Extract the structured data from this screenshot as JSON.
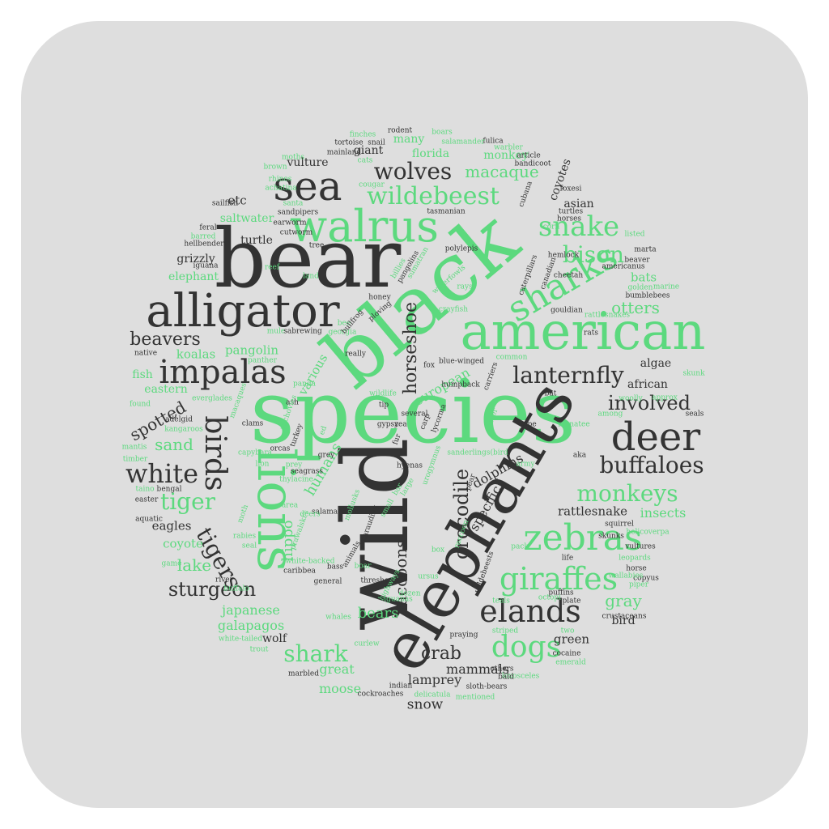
{
  "colors": {
    "background": "#dedede",
    "dark": "#333333",
    "green": "#5cd97e"
  },
  "words": [
    {
      "t": "species",
      "c": "green"
    },
    {
      "t": "wild",
      "c": "dark"
    },
    {
      "t": "black",
      "c": "green"
    },
    {
      "t": "bear",
      "c": "dark"
    },
    {
      "t": "elephants",
      "c": "dark"
    },
    {
      "t": "american",
      "c": "green"
    },
    {
      "t": "lions",
      "c": "green"
    },
    {
      "t": "alligator",
      "c": "dark"
    },
    {
      "t": "walrus",
      "c": "green"
    },
    {
      "t": "sea",
      "c": "dark"
    },
    {
      "t": "deer",
      "c": "dark"
    },
    {
      "t": "zebras",
      "c": "green"
    },
    {
      "t": "sharks",
      "c": "green"
    },
    {
      "t": "impalas",
      "c": "dark"
    },
    {
      "t": "elands",
      "c": "dark"
    },
    {
      "t": "giraffes",
      "c": "green"
    },
    {
      "t": "dogs",
      "c": "green"
    },
    {
      "t": "birds",
      "c": "dark"
    },
    {
      "t": "buffaloes",
      "c": "dark"
    },
    {
      "t": "snake",
      "c": "green"
    },
    {
      "t": "wildebeest",
      "c": "green"
    },
    {
      "t": "white",
      "c": "dark"
    },
    {
      "t": "lanternfly",
      "c": "dark"
    },
    {
      "t": "monkeys",
      "c": "green"
    },
    {
      "t": "wolves",
      "c": "dark"
    },
    {
      "t": "bison",
      "c": "green"
    },
    {
      "t": "tiger",
      "c": "green"
    },
    {
      "t": "tigers",
      "c": "dark"
    },
    {
      "t": "shark",
      "c": "green"
    },
    {
      "t": "involved",
      "c": "dark"
    },
    {
      "t": "sturgeon",
      "c": "dark"
    },
    {
      "t": "crocodile",
      "c": "dark"
    },
    {
      "t": "macaque",
      "c": "green"
    },
    {
      "t": "beavers",
      "c": "dark"
    },
    {
      "t": "otters",
      "c": "green"
    },
    {
      "t": "horseshoe",
      "c": "dark"
    },
    {
      "t": "gray",
      "c": "green"
    },
    {
      "t": "spotted",
      "c": "dark"
    },
    {
      "t": "sand",
      "c": "green"
    },
    {
      "t": "lake",
      "c": "green"
    },
    {
      "t": "raccoons",
      "c": "dark"
    },
    {
      "t": "bears",
      "c": "green"
    },
    {
      "t": "crab",
      "c": "dark"
    },
    {
      "t": "humans",
      "c": "green"
    },
    {
      "t": "hippo",
      "c": "green"
    },
    {
      "t": "specific",
      "c": "dark"
    },
    {
      "t": "dolphins",
      "c": "dark"
    },
    {
      "t": "rattlesnake",
      "c": "dark"
    },
    {
      "t": "insects",
      "c": "green"
    },
    {
      "t": "japanese",
      "c": "green"
    },
    {
      "t": "galapagos",
      "c": "green"
    },
    {
      "t": "mammals",
      "c": "dark"
    },
    {
      "t": "lamprey",
      "c": "dark"
    },
    {
      "t": "moose",
      "c": "green"
    },
    {
      "t": "great",
      "c": "green"
    },
    {
      "t": "snow",
      "c": "dark"
    },
    {
      "t": "green",
      "c": "dark"
    },
    {
      "t": "bird",
      "c": "dark"
    },
    {
      "t": "coyote",
      "c": "green"
    },
    {
      "t": "eagles",
      "c": "dark"
    },
    {
      "t": "wolf",
      "c": "dark"
    },
    {
      "t": "koalas",
      "c": "green"
    },
    {
      "t": "pangolin",
      "c": "green"
    },
    {
      "t": "various",
      "c": "green"
    },
    {
      "t": "european",
      "c": "green"
    },
    {
      "t": "african",
      "c": "dark"
    },
    {
      "t": "algae",
      "c": "dark"
    },
    {
      "t": "bats",
      "c": "green"
    },
    {
      "t": "asian",
      "c": "dark"
    },
    {
      "t": "coyotes",
      "c": "dark"
    },
    {
      "t": "monkey",
      "c": "green"
    },
    {
      "t": "florida",
      "c": "green"
    },
    {
      "t": "many",
      "c": "green"
    },
    {
      "t": "giant",
      "c": "dark"
    },
    {
      "t": "vulture",
      "c": "dark"
    },
    {
      "t": "etc",
      "c": "dark"
    },
    {
      "t": "saltwater",
      "c": "green"
    },
    {
      "t": "turtle",
      "c": "dark"
    },
    {
      "t": "grizzly",
      "c": "dark"
    },
    {
      "t": "elephant",
      "c": "green"
    },
    {
      "t": "fish",
      "c": "green"
    },
    {
      "t": "eastern",
      "c": "green"
    },
    {
      "t": "tortoise",
      "c": "dark"
    },
    {
      "t": "snail",
      "c": "dark"
    },
    {
      "t": "mainland",
      "c": "dark"
    },
    {
      "t": "rodent",
      "c": "dark"
    },
    {
      "t": "boars",
      "c": "green"
    },
    {
      "t": "finches",
      "c": "green"
    },
    {
      "t": "fulica",
      "c": "dark"
    },
    {
      "t": "salamander",
      "c": "green"
    },
    {
      "t": "cats",
      "c": "green"
    },
    {
      "t": "warbler",
      "c": "green"
    },
    {
      "t": "article",
      "c": "dark"
    },
    {
      "t": "moths",
      "c": "green"
    },
    {
      "t": "brown",
      "c": "green"
    },
    {
      "t": "cougar",
      "c": "green"
    },
    {
      "t": "rhinos",
      "c": "green"
    },
    {
      "t": "achatina",
      "c": "green"
    },
    {
      "t": "bandicoot",
      "c": "dark"
    },
    {
      "t": "foxesi",
      "c": "dark"
    },
    {
      "t": "sailfish",
      "c": "dark"
    },
    {
      "t": "santa",
      "c": "green"
    },
    {
      "t": "sandpipers",
      "c": "dark"
    },
    {
      "t": "earworm",
      "c": "dark"
    },
    {
      "t": "tasmanian",
      "c": "dark"
    },
    {
      "t": "turtles",
      "c": "dark"
    },
    {
      "t": "horses",
      "c": "dark"
    },
    {
      "t": "corn",
      "c": "green"
    },
    {
      "t": "feral",
      "c": "dark"
    },
    {
      "t": "cutworm",
      "c": "dark"
    },
    {
      "t": "barred",
      "c": "green"
    },
    {
      "t": "listed",
      "c": "green"
    },
    {
      "t": "hellbender",
      "c": "dark"
    },
    {
      "t": "tree",
      "c": "dark"
    },
    {
      "t": "polylepis",
      "c": "dark"
    },
    {
      "t": "americanus",
      "c": "dark"
    },
    {
      "t": "marta",
      "c": "dark"
    },
    {
      "t": "iguana",
      "c": "dark"
    },
    {
      "t": "reef",
      "c": "green"
    },
    {
      "t": "pangolins",
      "c": "dark"
    },
    {
      "t": "billies",
      "c": "green"
    },
    {
      "t": "sumatran",
      "c": "green"
    },
    {
      "t": "beaver",
      "c": "dark"
    },
    {
      "t": "waterfowls",
      "c": "green"
    },
    {
      "t": "cheetah",
      "c": "dark"
    },
    {
      "t": "hemlock",
      "c": "dark"
    },
    {
      "t": "land",
      "c": "green"
    },
    {
      "t": "rays",
      "c": "green"
    },
    {
      "t": "golden",
      "c": "green"
    },
    {
      "t": "marine",
      "c": "green"
    },
    {
      "t": "bumblebees",
      "c": "dark"
    },
    {
      "t": "honey",
      "c": "dark"
    },
    {
      "t": "crayfish",
      "c": "green"
    },
    {
      "t": "gouldian",
      "c": "dark"
    },
    {
      "t": "rattlesnakes",
      "c": "green"
    },
    {
      "t": "ploving",
      "c": "dark"
    },
    {
      "t": "mule",
      "c": "green"
    },
    {
      "t": "sabrewing",
      "c": "dark"
    },
    {
      "t": "bee",
      "c": "green"
    },
    {
      "t": "georgia",
      "c": "green"
    },
    {
      "t": "rats",
      "c": "dark"
    },
    {
      "t": "native",
      "c": "dark"
    },
    {
      "t": "panther",
      "c": "green"
    },
    {
      "t": "really",
      "c": "dark"
    },
    {
      "t": "blue-winged",
      "c": "dark"
    },
    {
      "t": "common",
      "c": "green"
    },
    {
      "t": "fox",
      "c": "dark"
    },
    {
      "t": "skunk",
      "c": "green"
    },
    {
      "t": "panda",
      "c": "green"
    },
    {
      "t": "humpback",
      "c": "dark"
    },
    {
      "t": "bat",
      "c": "dark"
    },
    {
      "t": "woolly",
      "c": "green"
    },
    {
      "t": "approx",
      "c": "green"
    },
    {
      "t": "found",
      "c": "green"
    },
    {
      "t": "everglades",
      "c": "green"
    },
    {
      "t": "ash",
      "c": "dark"
    },
    {
      "t": "tip",
      "c": "dark"
    },
    {
      "t": "among",
      "c": "green"
    },
    {
      "t": "seals",
      "c": "dark"
    },
    {
      "t": "adelgid",
      "c": "dark"
    },
    {
      "t": "clams",
      "c": "dark"
    },
    {
      "t": "gypsy",
      "c": "dark"
    },
    {
      "t": "zea",
      "c": "dark"
    },
    {
      "t": "cape",
      "c": "dark"
    },
    {
      "t": "manatee",
      "c": "green"
    },
    {
      "t": "kangaroos",
      "c": "green"
    },
    {
      "t": "lycorma",
      "c": "dark"
    },
    {
      "t": "carp",
      "c": "dark"
    },
    {
      "t": "borer",
      "c": "green"
    },
    {
      "t": "mantis",
      "c": "green"
    },
    {
      "t": "orcas",
      "c": "dark"
    },
    {
      "t": "timber",
      "c": "green"
    },
    {
      "t": "capybara",
      "c": "green"
    },
    {
      "t": "grey",
      "c": "dark"
    },
    {
      "t": "sanderlings(bird",
      "c": "green"
    },
    {
      "t": "aka",
      "c": "dark"
    },
    {
      "t": "lion",
      "c": "green"
    },
    {
      "t": "prey",
      "c": "green"
    },
    {
      "t": "hyenas",
      "c": "dark"
    },
    {
      "t": "army",
      "c": "green"
    },
    {
      "t": "seagrass",
      "c": "dark"
    },
    {
      "t": "thylacine",
      "c": "green"
    },
    {
      "t": "large",
      "c": "green"
    },
    {
      "t": "taino",
      "c": "green"
    },
    {
      "t": "bengal",
      "c": "dark"
    },
    {
      "t": "area",
      "c": "green"
    },
    {
      "t": "bar",
      "c": "green"
    },
    {
      "t": "salamanders",
      "c": "dark"
    },
    {
      "t": "easter",
      "c": "dark"
    },
    {
      "t": "deers",
      "c": "green"
    },
    {
      "t": "small",
      "c": "green"
    },
    {
      "t": "squirrel",
      "c": "dark"
    },
    {
      "t": "aquatic",
      "c": "dark"
    },
    {
      "t": "skunks",
      "c": "dark"
    },
    {
      "t": "helicoverpa",
      "c": "green"
    },
    {
      "t": "rabies",
      "c": "green"
    },
    {
      "t": "seal",
      "c": "green"
    },
    {
      "t": "box",
      "c": "green"
    },
    {
      "t": "pack",
      "c": "green"
    },
    {
      "t": "life",
      "c": "dark"
    },
    {
      "t": "leopards",
      "c": "green"
    },
    {
      "t": "white-backed",
      "c": "green"
    },
    {
      "t": "game",
      "c": "green"
    },
    {
      "t": "boar",
      "c": "green"
    },
    {
      "t": "bass",
      "c": "dark"
    },
    {
      "t": "horse",
      "c": "dark"
    },
    {
      "t": "caribbea",
      "c": "dark"
    },
    {
      "t": "general",
      "c": "dark"
    },
    {
      "t": "ursus",
      "c": "green"
    },
    {
      "t": "river",
      "c": "dark"
    },
    {
      "t": "copyus",
      "c": "dark"
    },
    {
      "t": "thresher",
      "c": "dark"
    },
    {
      "t": "piper",
      "c": "green"
    },
    {
      "t": "buffalo",
      "c": "green"
    },
    {
      "t": "puffins",
      "c": "dark"
    },
    {
      "t": "octopi",
      "c": "green"
    },
    {
      "t": "iguanas",
      "c": "green"
    },
    {
      "t": "dozen",
      "c": "green"
    },
    {
      "t": "plate",
      "c": "dark"
    },
    {
      "t": "teals",
      "c": "green"
    },
    {
      "t": "crustaceans",
      "c": "dark"
    },
    {
      "t": "whales",
      "c": "green"
    },
    {
      "t": "striped",
      "c": "green"
    },
    {
      "t": "praying",
      "c": "dark"
    },
    {
      "t": "two",
      "c": "green"
    },
    {
      "t": "white-tailed",
      "c": "green"
    },
    {
      "t": "curlew",
      "c": "green"
    },
    {
      "t": "trout",
      "c": "green"
    },
    {
      "t": "cocaine",
      "c": "dark"
    },
    {
      "t": "emerald",
      "c": "green"
    },
    {
      "t": "marbled",
      "c": "dark"
    },
    {
      "t": "others",
      "c": "dark"
    },
    {
      "t": "loxosceles",
      "c": "green"
    },
    {
      "t": "bald",
      "c": "dark"
    },
    {
      "t": "cockroaches",
      "c": "dark"
    },
    {
      "t": "indian",
      "c": "dark"
    },
    {
      "t": "delicatula",
      "c": "green"
    },
    {
      "t": "sloth-bears",
      "c": "dark"
    },
    {
      "t": "mentioned",
      "c": "green"
    },
    {
      "t": "carriers",
      "c": "dark"
    },
    {
      "t": "caterpillars",
      "c": "dark"
    },
    {
      "t": "canadian",
      "c": "dark"
    },
    {
      "t": "cubana",
      "c": "dark"
    },
    {
      "t": "bullfrog",
      "c": "dark"
    },
    {
      "t": "macaques",
      "c": "green"
    },
    {
      "t": "anchovies",
      "c": "green"
    },
    {
      "t": "turkey",
      "c": "dark"
    },
    {
      "t": "ed",
      "c": "green"
    },
    {
      "t": "wildlife",
      "c": "green"
    },
    {
      "t": "fur",
      "c": "dark"
    },
    {
      "t": "urogymnus",
      "c": "green"
    },
    {
      "t": "pear",
      "c": "dark"
    },
    {
      "t": "moth",
      "c": "green"
    },
    {
      "t": "mollusks",
      "c": "green"
    },
    {
      "t": "marauding",
      "c": "dark"
    },
    {
      "t": "animals",
      "c": "dark"
    },
    {
      "t": "prawalski's",
      "c": "green"
    },
    {
      "t": "raccoon",
      "c": "green"
    },
    {
      "t": "highways",
      "c": "green"
    },
    {
      "t": "wildebeests",
      "c": "dark"
    },
    {
      "t": "wallabies",
      "c": "green"
    },
    {
      "t": "vultures",
      "c": "dark"
    },
    {
      "t": "several",
      "c": "dark"
    }
  ]
}
